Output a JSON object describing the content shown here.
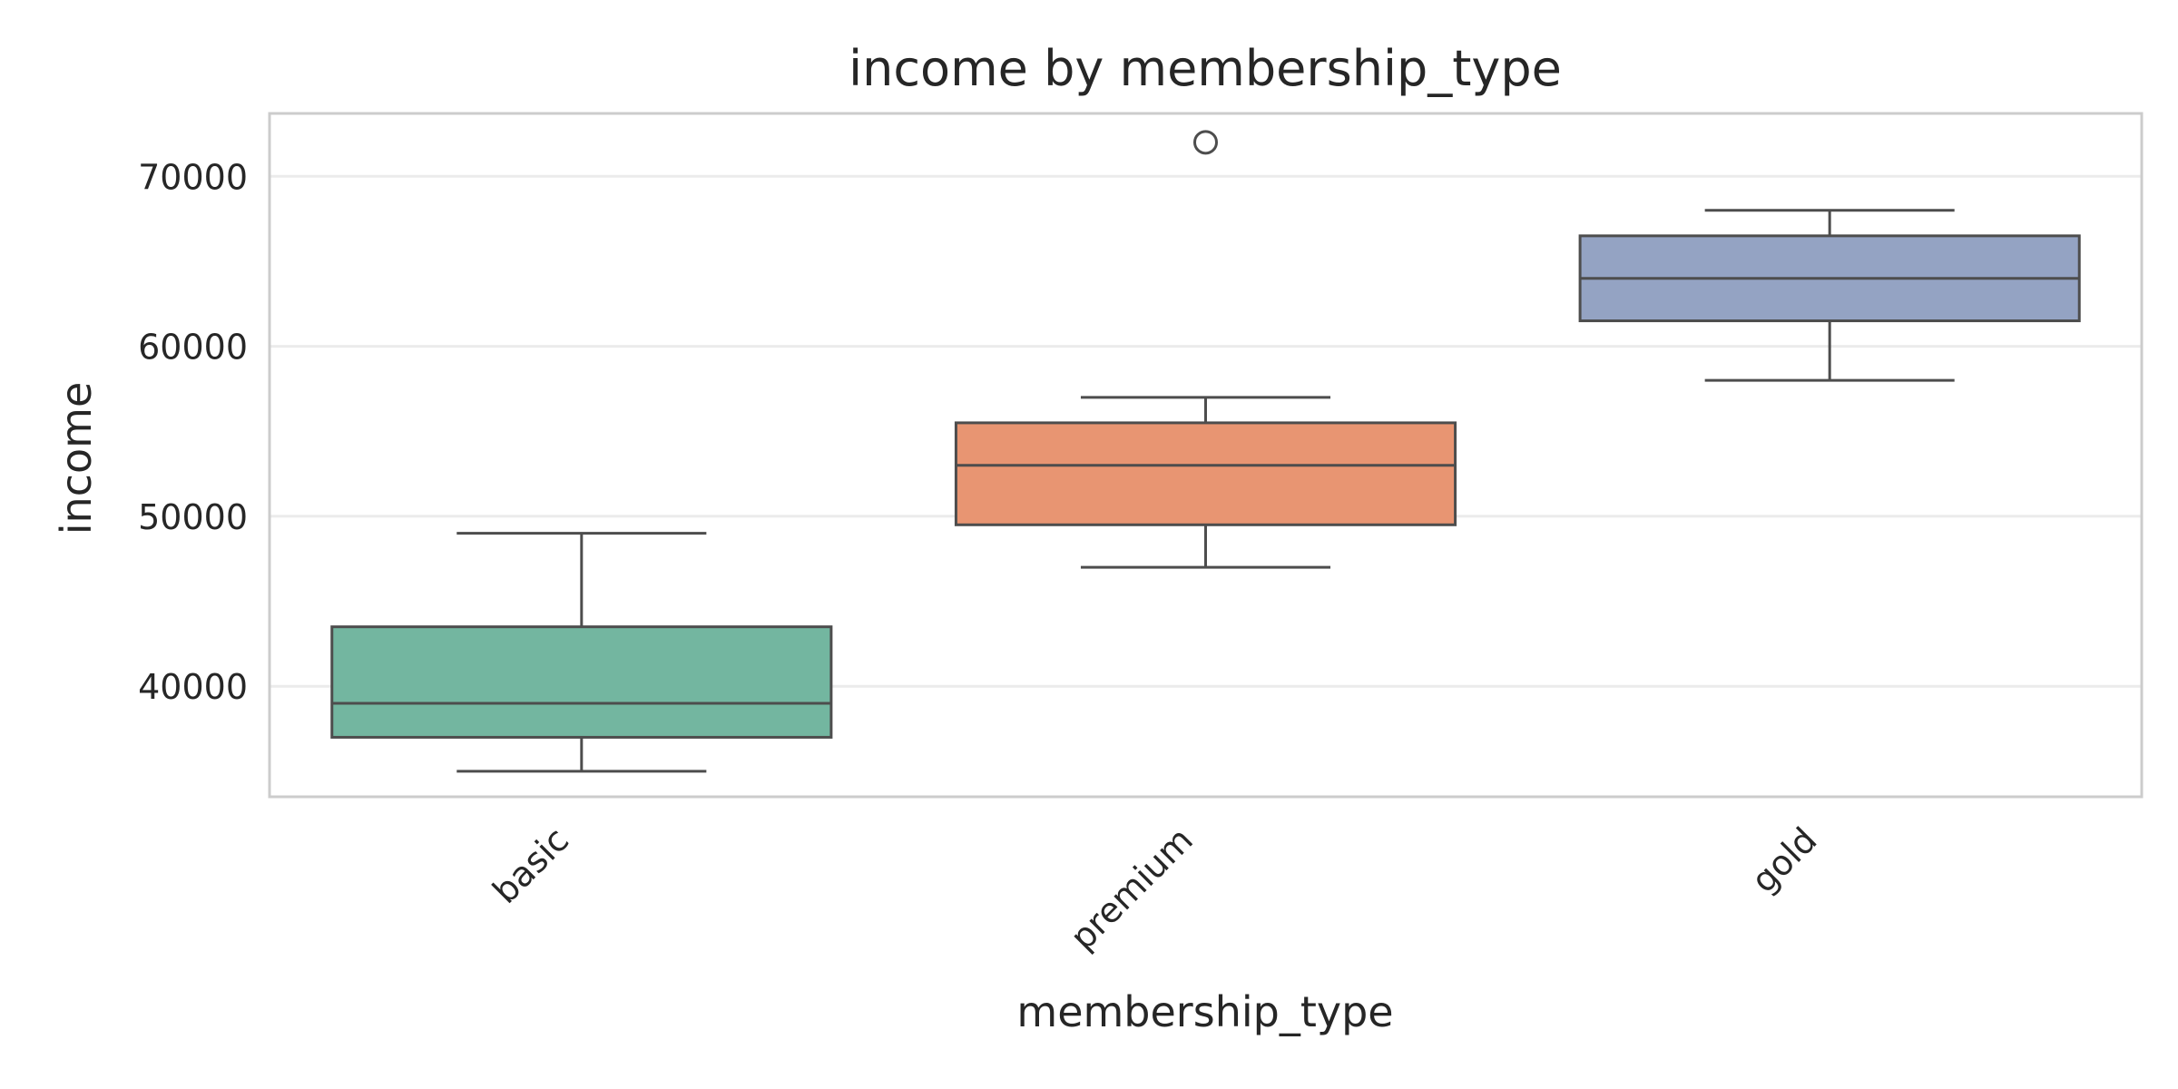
{
  "chart_data": {
    "type": "box",
    "title": "income by membership_type",
    "xlabel": "membership_type",
    "ylabel": "income",
    "ylim": [
      33500,
      73700
    ],
    "yticks": [
      40000,
      50000,
      60000,
      70000
    ],
    "ytick_labels": [
      "40000",
      "50000",
      "60000",
      "70000"
    ],
    "grid": "horizontal",
    "categories": [
      "basic",
      "premium",
      "gold"
    ],
    "boxes": [
      {
        "category": "basic",
        "whislo": 35000,
        "q1": 37000,
        "med": 39000,
        "q3": 43500,
        "whishi": 49000,
        "fliers": []
      },
      {
        "category": "premium",
        "whislo": 47000,
        "q1": 49500,
        "med": 53000,
        "q3": 55500,
        "whishi": 57000,
        "fliers": [
          72000
        ]
      },
      {
        "category": "gold",
        "whislo": 58000,
        "q1": 61500,
        "med": 64000,
        "q3": 66500,
        "whishi": 68000,
        "fliers": []
      }
    ],
    "colors": {
      "basic": "#73b6a0",
      "premium": "#e89572",
      "gold": "#94a3c3",
      "line": "#4d4d4d",
      "grid": "#ebebeb",
      "frame": "#cccccc",
      "text": "#262626"
    }
  }
}
